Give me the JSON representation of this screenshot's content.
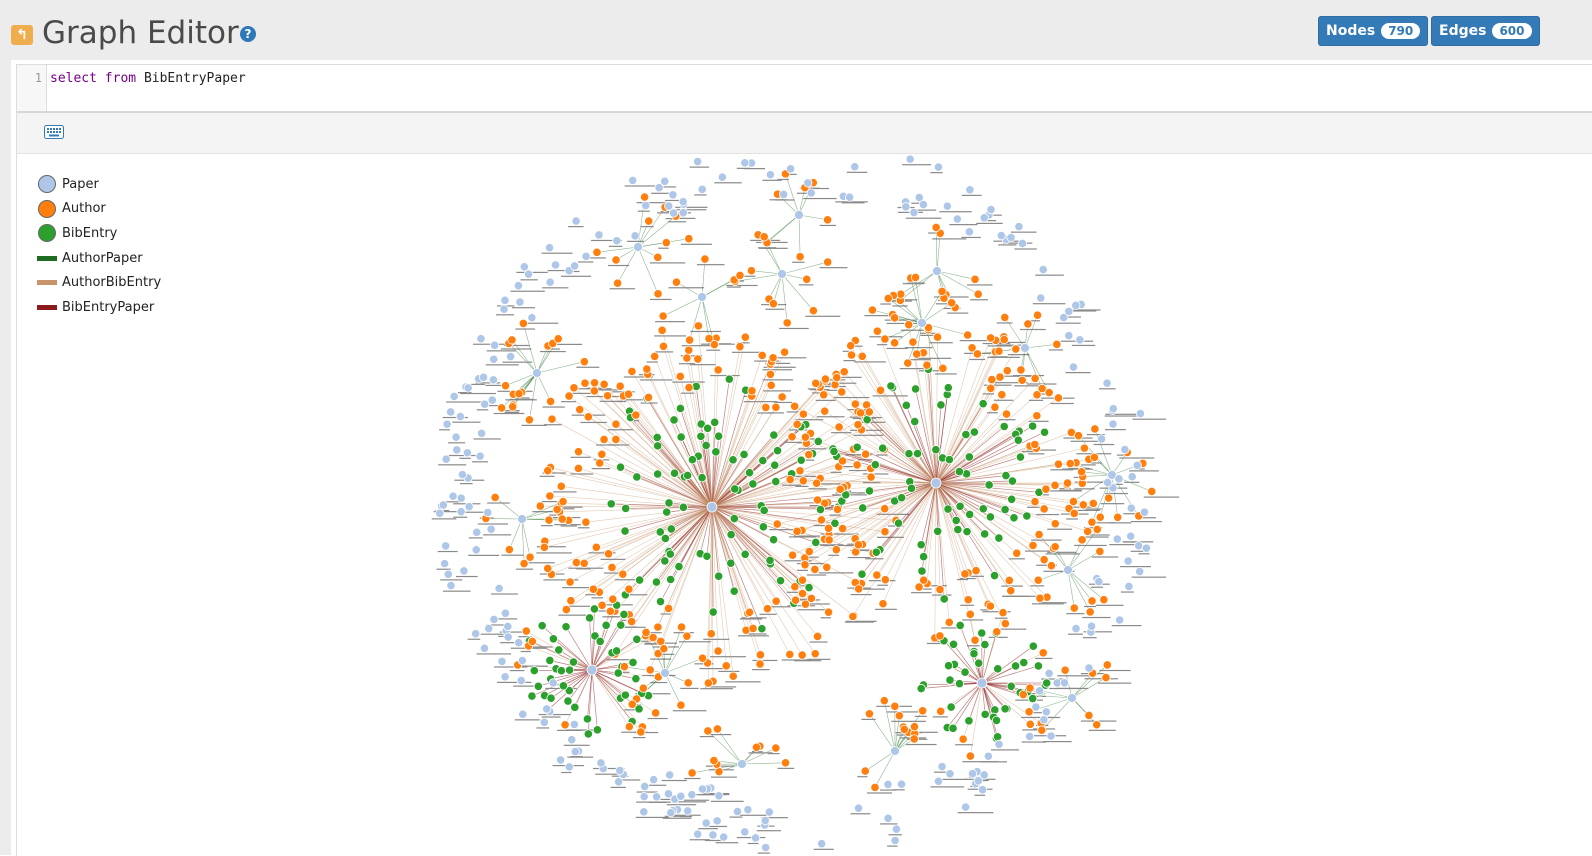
{
  "header": {
    "back_icon": "back-arrow-icon",
    "title": "Graph Editor",
    "help_label": "?",
    "nodes_label": "Nodes",
    "nodes_count": "790",
    "edges_label": "Edges",
    "edges_count": "600"
  },
  "query": {
    "line_number": "1",
    "keyword_select": "select",
    "keyword_from": "from",
    "class_name": "BibEntryPaper"
  },
  "toolbar": {
    "keyboard_icon": "keyboard-icon"
  },
  "legend": [
    {
      "label": "Paper",
      "kind": "node",
      "color": "#aec7e8"
    },
    {
      "label": "Author",
      "kind": "node",
      "color": "#ff7f0e"
    },
    {
      "label": "BibEntry",
      "kind": "node",
      "color": "#2ca02c"
    },
    {
      "label": "AuthorPaper",
      "kind": "edge",
      "color": "#1e6b22"
    },
    {
      "label": "AuthorBibEntry",
      "kind": "edge",
      "color": "#c8956a"
    },
    {
      "label": "BibEntryPaper",
      "kind": "edge",
      "color": "#8b1a1a"
    }
  ]
}
